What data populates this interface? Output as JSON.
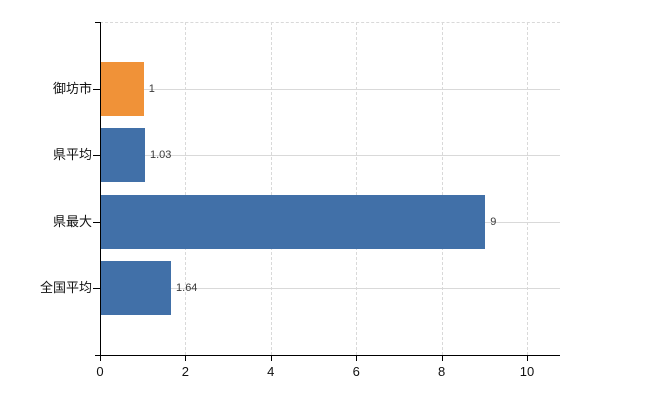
{
  "chart_data": {
    "type": "bar",
    "orientation": "horizontal",
    "title": "",
    "legend": "none",
    "categories": [
      "御坊市",
      "県平均",
      "県最大",
      "全国平均"
    ],
    "values": [
      1,
      1.03,
      9,
      1.64
    ],
    "value_labels": [
      "1",
      "1.03",
      "9",
      "1.64"
    ],
    "x_ticks": [
      0,
      2,
      4,
      6,
      8,
      10
    ],
    "x_tick_labels": [
      "0",
      "2",
      "4",
      "6",
      "8",
      "10"
    ],
    "xlim": [
      0,
      10.8
    ],
    "grid": "horizontal solid lines at category centers, vertical dashed lines at x ticks, dashed top border",
    "bar_colors": [
      "#F09238",
      "#4170A8",
      "#4170A8",
      "#4170A8"
    ],
    "colors": {
      "highlight_bar": "#F09238",
      "default_bar": "#4170A8",
      "axis": "#000000",
      "gridline": "#d9d9d9",
      "category_label": "#111111",
      "tick_label": "#111111",
      "value_label": "#3a3a3a",
      "background": "#FFFFFF"
    }
  }
}
